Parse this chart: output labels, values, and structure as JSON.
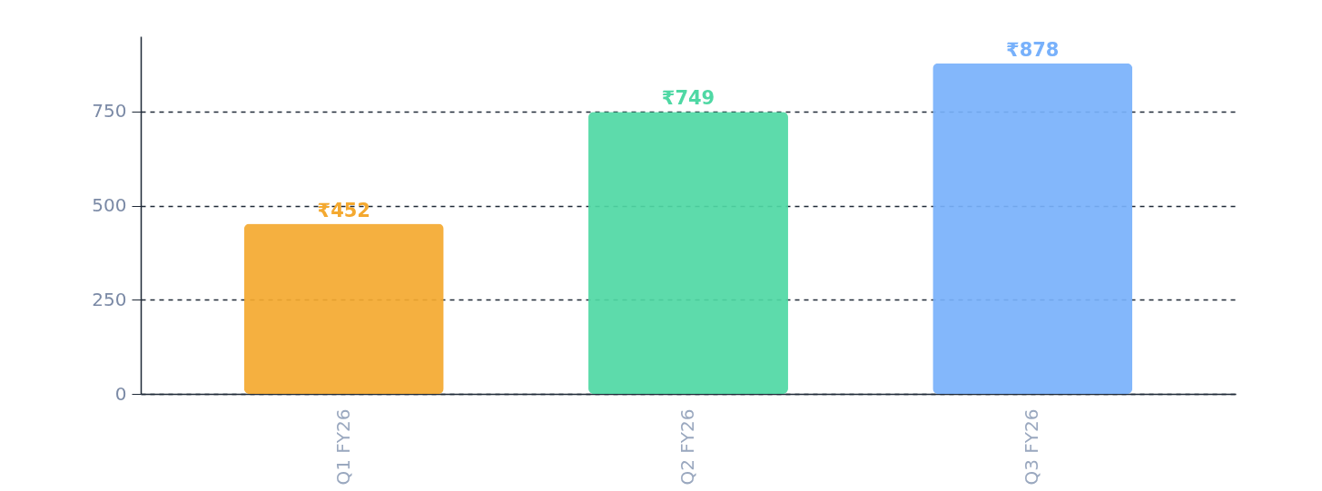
{
  "chart_data": {
    "type": "bar",
    "categories": [
      "Q1 FY26",
      "Q2 FY26",
      "Q3 FY26"
    ],
    "values": [
      452,
      749,
      878
    ],
    "colors": [
      "#f4a930",
      "#4fd8a4",
      "#78b1fb"
    ],
    "value_labels": [
      "₹452",
      "₹749",
      "₹878"
    ],
    "ylim": [
      0,
      950
    ],
    "yticks": [
      0,
      250,
      500,
      750
    ],
    "grid": "y"
  }
}
